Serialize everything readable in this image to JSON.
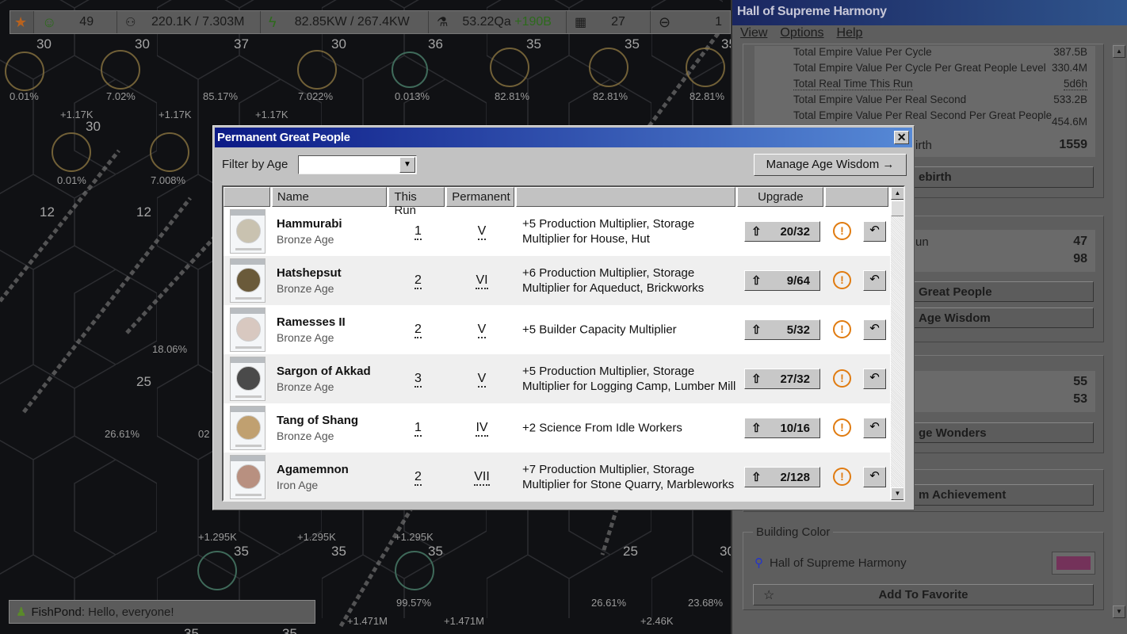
{
  "topbar": {
    "icons": [
      "star-icon",
      "happiness-icon",
      "population-icon",
      "power-icon",
      "science-icon",
      "building-icon",
      "minus-circle-icon"
    ],
    "happiness": "49",
    "population": "220.1K / 7.303M",
    "power": "82.85KW / 267.4KW",
    "science": "53.22Qa",
    "science_delta": "+190B",
    "buildings": "27",
    "other": "1"
  },
  "map": {
    "labels": [
      "30",
      "30",
      "37",
      "30",
      "36",
      "35",
      "35",
      "35",
      "0.01%",
      "7.02%",
      "85.17%",
      "7.022%",
      "0.013%",
      "82.81%",
      "82.81%",
      "82.81%",
      "+1.17K",
      "+1.17K",
      "+1.17K",
      "30",
      "0.01%",
      "7.008%",
      "12",
      "12",
      "18.06%",
      "25",
      "26.61%",
      "02",
      "+1.295K",
      "+1.295K",
      "+1.295K",
      "35",
      "35",
      "35",
      "25",
      "30",
      "99.57%",
      "26.61%",
      "23.68%",
      "+1.471M",
      "+1.471M",
      "+2.46K",
      "35",
      "35"
    ]
  },
  "chat": {
    "user": "FishPond",
    "message": "Hello, everyone!"
  },
  "right_panel": {
    "title": "Hall of Supreme Harmony",
    "menu": [
      "View",
      "Options",
      "Help"
    ],
    "stats": [
      {
        "label": "Total Empire Value Per Cycle",
        "value": "387.5B"
      },
      {
        "label": "Total Empire Value Per Cycle Per Great People Level",
        "value": "330.4M"
      },
      {
        "label": "Total Real Time This Run",
        "value": "5d6h"
      },
      {
        "label": "Total Empire Value Per Real Second",
        "value": "533.2B"
      },
      {
        "label": "Total Empire Value Per Real Second Per Great People",
        "value": "454.6M"
      }
    ],
    "rebirth_label_fragment": "irth",
    "rebirth_value": "1559",
    "rebirth_button_fragment": "ebirth",
    "gp_label_fragment": "un",
    "gp_values": [
      "47",
      "98"
    ],
    "gp_button_fragment": "Great People",
    "wisdom_button_fragment": "Age Wisdom",
    "wonders_values": [
      "55",
      "53"
    ],
    "wonders_button_fragment": "ge Wonders",
    "achievement_button_fragment": "m Achievement",
    "building_color": {
      "legend": "Building Color",
      "name": "Hall of Supreme Harmony",
      "swatch": "#74325a",
      "search_icon": "search-icon"
    },
    "favorite_button": "Add To Favorite"
  },
  "dialog": {
    "title": "Permanent Great People",
    "close": "✕",
    "filter_label": "Filter by Age",
    "filter_value": "",
    "manage_button": "Manage Age Wisdom",
    "columns": [
      "",
      "Name",
      "This Run",
      "Permanent",
      "",
      "Upgrade",
      ""
    ],
    "rows": [
      {
        "name": "Hammurabi",
        "age": "Bronze Age",
        "this_run": "1",
        "permanent": "V",
        "effect": "+5 Production Multiplier, Storage Multiplier for House, Hut",
        "upgrade": "20/32"
      },
      {
        "name": "Hatshepsut",
        "age": "Bronze Age",
        "this_run": "2",
        "permanent": "VI",
        "effect": "+6 Production Multiplier, Storage Multiplier for Aqueduct, Brickworks",
        "upgrade": "9/64"
      },
      {
        "name": "Ramesses II",
        "age": "Bronze Age",
        "this_run": "2",
        "permanent": "V",
        "effect": "+5 Builder Capacity Multiplier",
        "upgrade": "5/32"
      },
      {
        "name": "Sargon of Akkad",
        "age": "Bronze Age",
        "this_run": "3",
        "permanent": "V",
        "effect": "+5 Production Multiplier, Storage Multiplier for Logging Camp, Lumber Mill",
        "upgrade": "27/32"
      },
      {
        "name": "Tang of Shang",
        "age": "Bronze Age",
        "this_run": "1",
        "permanent": "IV",
        "effect": "+2 Science From Idle Workers",
        "upgrade": "10/16"
      },
      {
        "name": "Agamemnon",
        "age": "Iron Age",
        "this_run": "2",
        "permanent": "VII",
        "effect": "+7 Production Multiplier, Storage Multiplier for Stone Quarry, Marbleworks",
        "upgrade": "2/128"
      }
    ],
    "colors": {
      "warning": "#e07b10",
      "title_start": "#0c1a86",
      "title_end": "#5689d6"
    }
  }
}
